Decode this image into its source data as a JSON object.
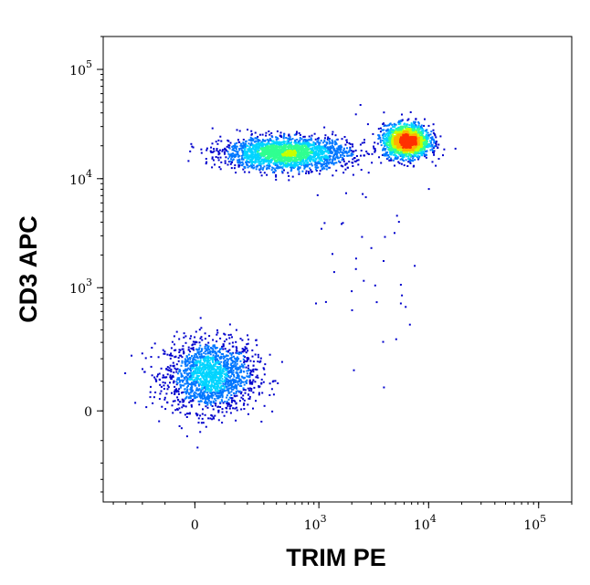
{
  "chart_data": {
    "type": "scatter",
    "style": "density-dot-plot",
    "xlabel": "TRIM PE",
    "ylabel": "CD3 APC",
    "x_scale": "biexponential",
    "y_scale": "biexponential",
    "x_ticks": [
      {
        "value": 0,
        "base": "0",
        "exp": ""
      },
      {
        "value": 1000,
        "base": "10",
        "exp": "3"
      },
      {
        "value": 10000,
        "base": "10",
        "exp": "4"
      },
      {
        "value": 100000,
        "base": "10",
        "exp": "5"
      }
    ],
    "y_ticks": [
      {
        "value": 0,
        "base": "0",
        "exp": ""
      },
      {
        "value": 1000,
        "base": "10",
        "exp": "3"
      },
      {
        "value": 10000,
        "base": "10",
        "exp": "4"
      },
      {
        "value": 100000,
        "base": "10",
        "exp": "5"
      }
    ],
    "xlim": [
      -500,
      200000
    ],
    "ylim": [
      -500,
      200000
    ],
    "grid": false,
    "density_colors": [
      "#0000cc",
      "#0077ff",
      "#00d4ff",
      "#30ff90",
      "#c8ff00",
      "#ffb000",
      "#ff3000"
    ],
    "populations": [
      {
        "x_center": 50,
        "y_center": 120,
        "x_spread": 140,
        "y_spread": 170,
        "weight": 1700
      },
      {
        "x_center": 6300,
        "y_center": 22000,
        "x_spread": 2800,
        "y_spread": 8000,
        "weight": 1900
      },
      {
        "x_center": 500,
        "y_center": 17000,
        "x_spread": 900,
        "y_spread": 6000,
        "weight": 2200
      }
    ]
  }
}
